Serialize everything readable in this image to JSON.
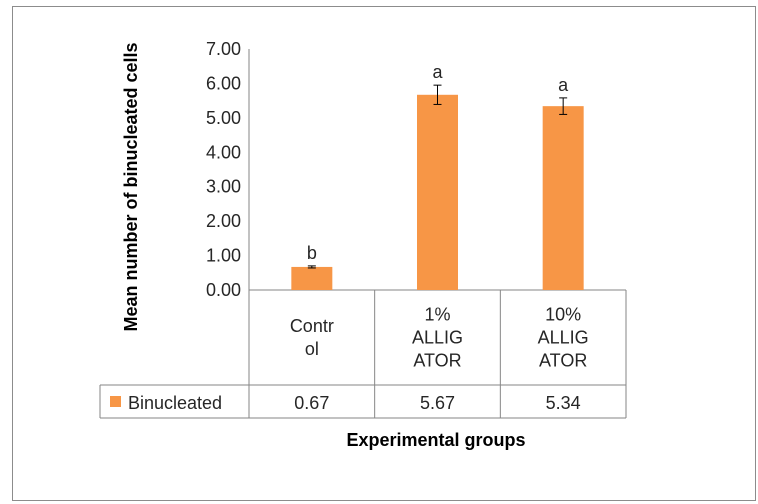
{
  "chart_data": {
    "type": "bar",
    "categories": [
      [
        "Contr",
        "ol"
      ],
      [
        "1%",
        "ALLIG",
        "ATOR"
      ],
      [
        "10%",
        "ALLIG",
        "ATOR"
      ]
    ],
    "series": [
      {
        "name": "Binucleated",
        "values": [
          0.67,
          5.67,
          5.34
        ],
        "error": [
          0.03,
          0.28,
          0.24
        ],
        "letters": [
          "b",
          "a",
          "a"
        ],
        "table_values": [
          "0.67",
          "5.67",
          "5.34"
        ]
      }
    ],
    "xlabel": "Experimental groups",
    "ylabel": "Mean number of binucleated cells",
    "ylim": [
      0,
      7
    ],
    "yticks": [
      "0.00",
      "1.00",
      "2.00",
      "3.00",
      "4.00",
      "5.00",
      "6.00",
      "7.00"
    ],
    "bar_color": "#F79646",
    "grid": false,
    "legend": "data-table-row"
  }
}
